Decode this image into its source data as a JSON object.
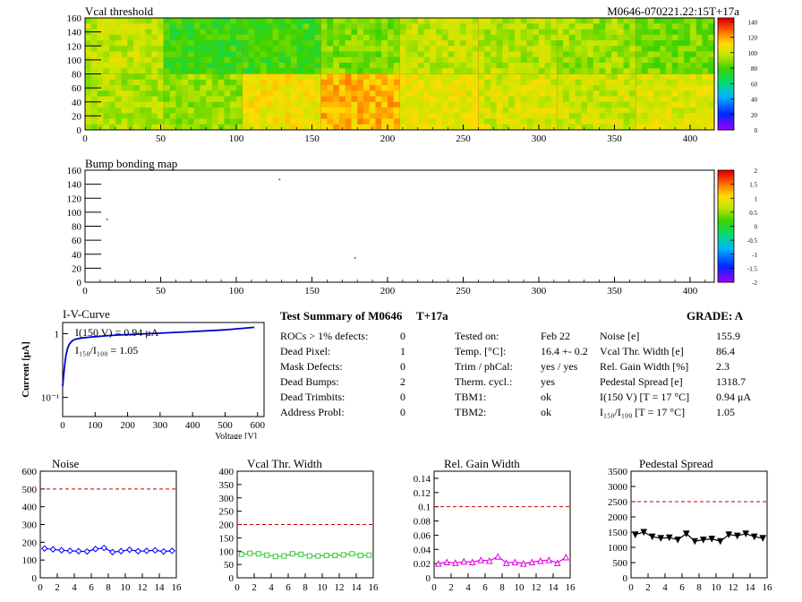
{
  "header": {
    "module_id": "M0646-070221.22:15T+17a"
  },
  "chart_data": [
    {
      "type": "heatmap",
      "title": "Vcal threshold",
      "xlim": [
        0,
        416
      ],
      "ylim": [
        0,
        160
      ],
      "xticks": [
        "0",
        "50",
        "100",
        "150",
        "200",
        "250",
        "300",
        "350",
        "400"
      ],
      "yticks": [
        "0",
        "20",
        "40",
        "60",
        "80",
        "100",
        "120",
        "140",
        "160"
      ],
      "zlim": [
        0,
        145
      ],
      "zticks": [
        "0",
        "20",
        "40",
        "60",
        "80",
        "100",
        "120",
        "140"
      ],
      "roc_grid": {
        "cols": 8,
        "rows": 2,
        "col_width": 52,
        "row_height": 80
      },
      "roc_means": [
        [
          98,
          78,
          80,
          88,
          98,
          96,
          92,
          87
        ],
        [
          95,
          91,
          108,
          118,
          106,
          102,
          100,
          104
        ]
      ]
    },
    {
      "type": "heatmap",
      "title": "Bump bonding map",
      "xlim": [
        0,
        416
      ],
      "ylim": [
        0,
        160
      ],
      "xticks": [
        "0",
        "50",
        "100",
        "150",
        "200",
        "250",
        "300",
        "350",
        "400"
      ],
      "yticks": [
        "0",
        "20",
        "40",
        "60",
        "80",
        "100",
        "120",
        "140",
        "160"
      ],
      "zticks": [
        "-2",
        "-1.5",
        "-1",
        "-0.5",
        "0",
        "0.5",
        "1",
        "1.5",
        "2"
      ],
      "dead_pixels": [
        [
          14,
          91
        ],
        [
          128,
          148
        ],
        [
          178,
          36
        ]
      ]
    },
    {
      "type": "line",
      "title": "I-V-Curve",
      "xlabel": "Voltage [V]",
      "ylabel": "Current [μA]",
      "xlim": [
        0,
        620
      ],
      "ylim": [
        0.05,
        1.5
      ],
      "yscale": "log",
      "xticks": [
        "0",
        "100",
        "200",
        "300",
        "400",
        "500",
        "600"
      ],
      "yticks": [
        "10⁻¹",
        "1"
      ],
      "annotations": [
        "I(150 V) = 0.94 μA",
        "I₁₅₀/I₁₀₀ = 1.05"
      ],
      "x": [
        0,
        5,
        10,
        15,
        20,
        30,
        40,
        60,
        80,
        100,
        150,
        200,
        300,
        400,
        500,
        590
      ],
      "y": [
        0.15,
        0.28,
        0.45,
        0.58,
        0.68,
        0.78,
        0.82,
        0.86,
        0.88,
        0.9,
        0.94,
        0.97,
        1.02,
        1.08,
        1.15,
        1.26
      ]
    },
    {
      "type": "line",
      "title": "Noise",
      "xlim": [
        0,
        16
      ],
      "ylim": [
        0,
        600
      ],
      "threshold": 500,
      "xticks": [
        "0",
        "2",
        "4",
        "6",
        "8",
        "10",
        "12",
        "14",
        "16"
      ],
      "yticks": [
        "0",
        "100",
        "200",
        "300",
        "400",
        "500",
        "600"
      ],
      "color": "#0000ff",
      "marker": "diamond",
      "x": [
        0,
        1,
        2,
        3,
        4,
        5,
        6,
        7,
        8,
        9,
        10,
        11,
        12,
        13,
        14,
        15
      ],
      "y": [
        165,
        160,
        155,
        152,
        150,
        148,
        162,
        168,
        145,
        150,
        158,
        150,
        152,
        155,
        148,
        152
      ]
    },
    {
      "type": "line",
      "title": "Vcal Thr. Width",
      "xlim": [
        0,
        16
      ],
      "ylim": [
        0,
        400
      ],
      "threshold": 200,
      "xticks": [
        "0",
        "2",
        "4",
        "6",
        "8",
        "10",
        "12",
        "14",
        "16"
      ],
      "yticks": [
        "0",
        "50",
        "100",
        "150",
        "200",
        "250",
        "300",
        "350",
        "400"
      ],
      "color": "#33cc33",
      "marker": "square",
      "x": [
        0,
        1,
        2,
        3,
        4,
        5,
        6,
        7,
        8,
        9,
        10,
        11,
        12,
        13,
        14,
        15
      ],
      "y": [
        88,
        92,
        90,
        85,
        80,
        82,
        90,
        88,
        82,
        82,
        84,
        84,
        86,
        90,
        84,
        85
      ]
    },
    {
      "type": "line",
      "title": "Rel. Gain Width",
      "xlim": [
        0,
        16
      ],
      "ylim": [
        0,
        0.15
      ],
      "threshold": 0.1,
      "xticks": [
        "0",
        "2",
        "4",
        "6",
        "8",
        "10",
        "12",
        "14",
        "16"
      ],
      "yticks": [
        "0",
        "0.02",
        "0.04",
        "0.06",
        "0.08",
        "0.1",
        "0.12",
        "0.14"
      ],
      "color": "#e000e0",
      "marker": "triangle-up",
      "x": [
        0,
        1,
        2,
        3,
        4,
        5,
        6,
        7,
        8,
        9,
        10,
        11,
        12,
        13,
        14,
        15
      ],
      "y": [
        0.02,
        0.022,
        0.021,
        0.023,
        0.022,
        0.025,
        0.024,
        0.03,
        0.021,
        0.022,
        0.02,
        0.022,
        0.024,
        0.025,
        0.021,
        0.029
      ]
    },
    {
      "type": "line",
      "title": "Pedestal Spread",
      "xlim": [
        0,
        16
      ],
      "ylim": [
        0,
        3500
      ],
      "threshold": 2500,
      "xticks": [
        "0",
        "2",
        "4",
        "6",
        "8",
        "10",
        "12",
        "14",
        "16"
      ],
      "yticks": [
        "0",
        "500",
        "1000",
        "1500",
        "2000",
        "2500",
        "3000",
        "3500"
      ],
      "color": "#000000",
      "marker": "triangle-down",
      "x": [
        0,
        1,
        2,
        3,
        4,
        5,
        6,
        7,
        8,
        9,
        10,
        11,
        12,
        13,
        14,
        15
      ],
      "y": [
        1420,
        1500,
        1350,
        1300,
        1320,
        1250,
        1450,
        1200,
        1250,
        1280,
        1200,
        1420,
        1380,
        1450,
        1350,
        1300
      ]
    }
  ],
  "summary": {
    "title": "Test Summary of M0646",
    "temp_tag": "T+17a",
    "grade": "GRADE:  A",
    "defects": [
      {
        "label": "ROCs > 1% defects:",
        "value": "0"
      },
      {
        "label": "Dead Pixel:",
        "value": "1"
      },
      {
        "label": "Mask Defects:",
        "value": "0"
      },
      {
        "label": "Dead Bumps:",
        "value": "2"
      },
      {
        "label": "Dead Trimbits:",
        "value": "0"
      },
      {
        "label": "Address Probl:",
        "value": "0"
      }
    ],
    "conditions": [
      {
        "label": "Tested on:",
        "value": "Feb 22"
      },
      {
        "label": "Temp. [°C]:",
        "value": "16.4 +- 0.2"
      },
      {
        "label": "Trim / phCal:",
        "value": "yes / yes"
      },
      {
        "label": "Therm. cycl.:",
        "value": "yes"
      },
      {
        "label": "TBM1:",
        "value": "ok"
      },
      {
        "label": "TBM2:",
        "value": "ok"
      }
    ],
    "results": [
      {
        "label": "Noise [e]",
        "value": "155.9"
      },
      {
        "label": "Vcal Thr. Width [e]",
        "value": "86.4"
      },
      {
        "label": "Rel. Gain Width [%]",
        "value": "2.3"
      },
      {
        "label": "Pedestal Spread [e]",
        "value": "1318.7"
      },
      {
        "label": "I(150 V) [T = 17 °C]",
        "value": "0.94 μA"
      },
      {
        "label": "I₁₅₀/I₁₀₀ [T = 17 °C]",
        "value": "1.05"
      }
    ]
  }
}
